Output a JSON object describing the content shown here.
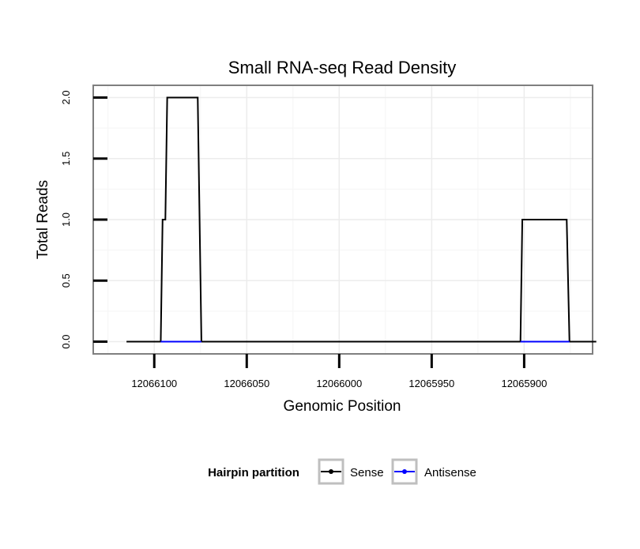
{
  "chart_data": {
    "type": "line",
    "title": "Small RNA-seq Read Density",
    "xlabel": "Genomic Position",
    "ylabel": "Total Reads",
    "x_reversed": true,
    "xlim": [
      12066133,
      12065863
    ],
    "ylim": [
      -0.1,
      2.1
    ],
    "x_ticks": [
      12066100,
      12066050,
      12066000,
      12065950,
      12065900
    ],
    "x_tick_labels": [
      "12066100",
      "12066050",
      "12066000",
      "12065950",
      "12065900"
    ],
    "y_ticks": [
      0.0,
      0.5,
      1.0,
      1.5,
      2.0
    ],
    "y_tick_labels": [
      "0.0",
      "0.5",
      "1.0",
      "1.5",
      "2.0"
    ],
    "grid": true,
    "legend_position": "bottom",
    "legend_title": "Hairpin partition",
    "series": [
      {
        "name": "Sense",
        "color": "#000000",
        "x": [
          12066115,
          12066096.5,
          12066095.5,
          12066094,
          12066093,
          12066076.5,
          12066074.5,
          12065902,
          12065901,
          12065877,
          12065875.5,
          12065861
        ],
        "y": [
          0,
          0,
          1,
          1,
          2,
          2,
          0,
          0,
          1,
          1,
          0,
          0
        ]
      },
      {
        "name": "Antisense",
        "color": "#0000ff",
        "x": [
          12066096.5,
          12066074.5,
          12065902,
          12065875.5
        ],
        "y": [
          0,
          0,
          0,
          0
        ]
      }
    ]
  }
}
